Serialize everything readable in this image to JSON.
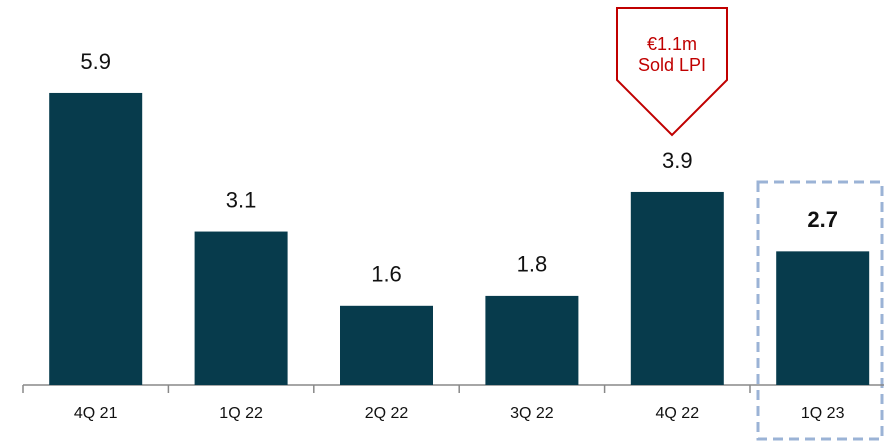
{
  "chart_data": {
    "type": "bar",
    "categories": [
      "4Q 21",
      "1Q 22",
      "2Q 22",
      "3Q 22",
      "4Q 22",
      "1Q 23"
    ],
    "values": [
      5.9,
      3.1,
      1.6,
      1.8,
      3.9,
      2.7
    ],
    "color": "#073b4c",
    "annotations": [
      "€1.1m",
      "Sold LPI"
    ]
  }
}
